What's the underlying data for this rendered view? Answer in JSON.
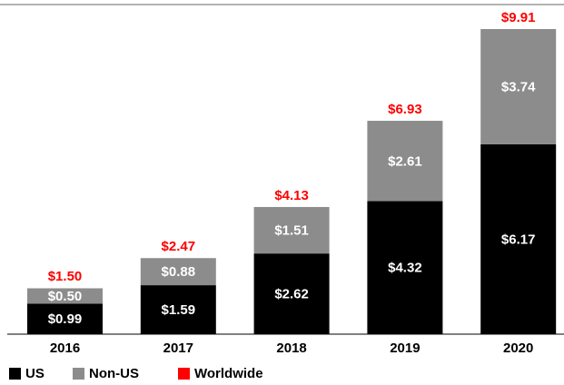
{
  "chart_data": {
    "type": "stacked_bar",
    "categories": [
      "2016",
      "2017",
      "2018",
      "2019",
      "2020"
    ],
    "series": [
      {
        "name": "US",
        "color": "#000000",
        "values": [
          0.99,
          1.59,
          2.62,
          4.32,
          6.17
        ],
        "value_labels": [
          "$0.99",
          "$1.59",
          "$2.62",
          "$4.32",
          "$6.17"
        ]
      },
      {
        "name": "Non-US",
        "color": "#8c8c8c",
        "values": [
          0.5,
          0.88,
          1.51,
          2.61,
          3.74
        ],
        "value_labels": [
          "$0.50",
          "$0.88",
          "$1.51",
          "$2.61",
          "$3.74"
        ]
      },
      {
        "name": "Worldwide",
        "color": "#ff0000",
        "values": [
          1.5,
          2.47,
          4.13,
          6.93,
          9.91
        ],
        "value_labels": [
          "$1.50",
          "$2.47",
          "$4.13",
          "$6.93",
          "$9.91"
        ]
      }
    ]
  }
}
